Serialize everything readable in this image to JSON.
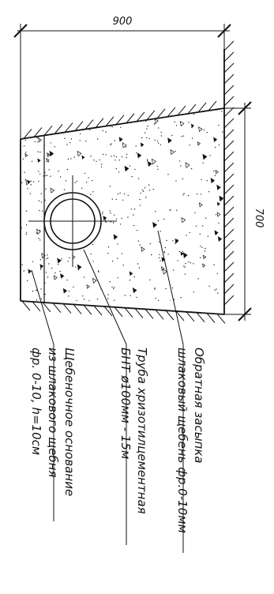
{
  "dimensions": {
    "width_label": "900",
    "height_label": "700"
  },
  "labels": {
    "backfill_line1": "Обратная засыпка",
    "backfill_line2": "шлаковый щебень фр.0-10мм",
    "pipe_line1": "Труба хризотилцементная",
    "pipe_line2": "БНТ ø100мм - 15м",
    "base_line1": "Щебеночное основание",
    "base_line2": "из шлакового щебня",
    "base_line3": "фр. 0-10, h=10см"
  },
  "colors": {
    "ink": "#111111",
    "background": "#ffffff"
  }
}
